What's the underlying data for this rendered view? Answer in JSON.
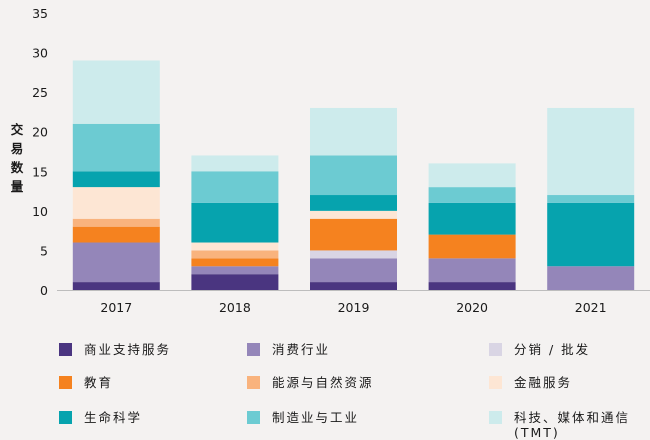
{
  "chart_data": {
    "type": "bar",
    "stacked": true,
    "title": "",
    "xlabel": "",
    "ylabel": "交易数量",
    "ylim": [
      0,
      35
    ],
    "yticks": [
      0,
      5,
      10,
      15,
      20,
      25,
      30,
      35
    ],
    "grid": false,
    "legend_position": "bottom",
    "categories": [
      "2017",
      "2018",
      "2019",
      "2020",
      "2021"
    ],
    "series": [
      {
        "name": "商业支持服务",
        "color": "#4a3580",
        "values": [
          1,
          2,
          1,
          1,
          0
        ]
      },
      {
        "name": "消费行业",
        "color": "#9486b9",
        "values": [
          5,
          1,
          3,
          3,
          3
        ]
      },
      {
        "name": "分销 / 批发",
        "color": "#d9d5e4",
        "values": [
          0,
          0,
          1,
          0,
          0
        ]
      },
      {
        "name": "教育",
        "color": "#f5821f",
        "values": [
          2,
          1,
          4,
          3,
          0
        ]
      },
      {
        "name": "能源与自然资源",
        "color": "#f9b37d",
        "values": [
          1,
          1,
          0,
          0,
          0
        ]
      },
      {
        "name": "金融服务",
        "color": "#fde6d4",
        "values": [
          4,
          1,
          1,
          0,
          0
        ]
      },
      {
        "name": "生命科学",
        "color": "#06a3ae",
        "values": [
          2,
          5,
          2,
          4,
          8
        ]
      },
      {
        "name": "制造业与工业",
        "color": "#6ccbd2",
        "values": [
          6,
          4,
          5,
          2,
          1
        ]
      },
      {
        "name": "科技、媒体和通信\n(TMT)",
        "color": "#cdebec",
        "values": [
          8,
          2,
          6,
          3,
          11
        ]
      }
    ]
  }
}
